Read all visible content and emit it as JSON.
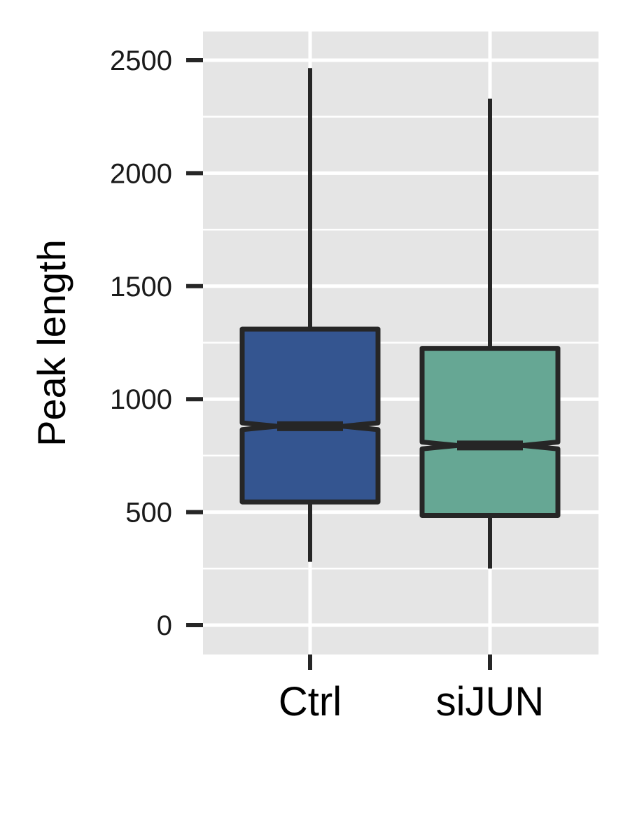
{
  "chart_data": {
    "type": "boxplot",
    "title": "",
    "xlabel": "",
    "ylabel": "Peak length",
    "ylim": [
      -125,
      2625
    ],
    "y_ticks": [
      "0",
      "500",
      "1000",
      "1500",
      "2000",
      "2500"
    ],
    "y_tick_values": [
      0,
      500,
      1000,
      1500,
      2000,
      2500
    ],
    "grid": true,
    "legend": "none",
    "notched": true,
    "categories": [
      "Ctrl",
      "siJUN"
    ],
    "boxes": [
      {
        "category": "Ctrl",
        "whisker_low": 280,
        "q1": 545,
        "median": 880,
        "q3": 1310,
        "whisker_high": 2465,
        "notch_low": 865,
        "notch_high": 895,
        "fill": "#345590"
      },
      {
        "category": "siJUN",
        "whisker_low": 250,
        "q1": 485,
        "median": 795,
        "q3": 1225,
        "whisker_high": 2330,
        "notch_low": 780,
        "notch_high": 810,
        "fill": "#66a794"
      }
    ]
  },
  "colors": {
    "panel_background": "#e5e5e5",
    "grid": "#ffffff",
    "outline": "#262626"
  }
}
